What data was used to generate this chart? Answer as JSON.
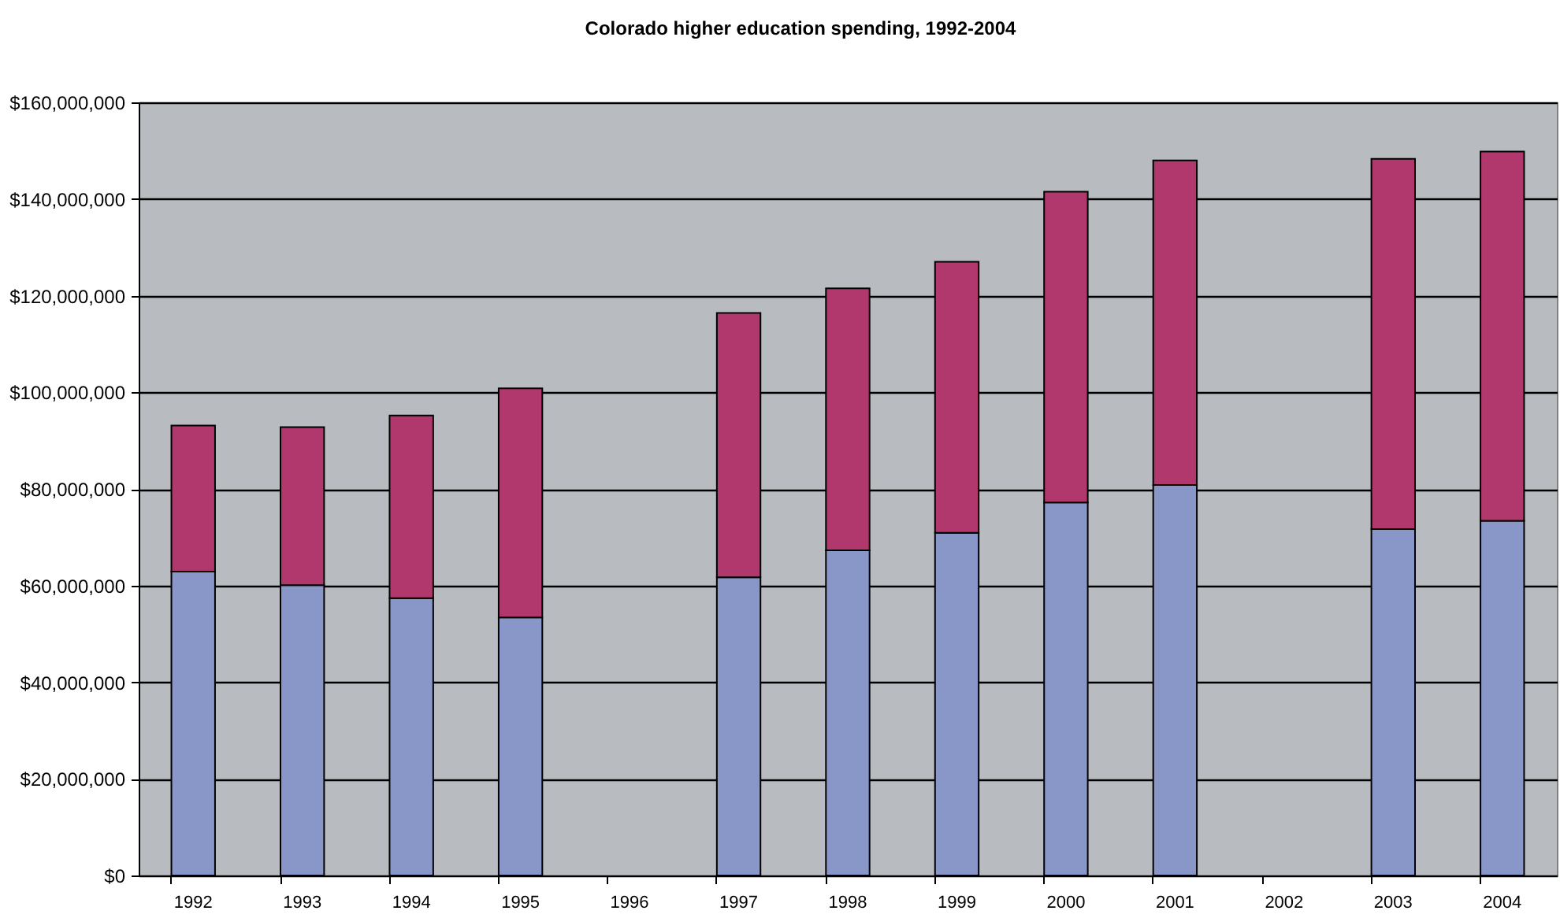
{
  "chart_data": {
    "type": "bar",
    "title": "Colorado higher education spending, 1992-2004",
    "stacked": true,
    "categories": [
      "1992",
      "1993",
      "1994",
      "1995",
      "1996",
      "1997",
      "1998",
      "1999",
      "2000",
      "2001",
      "2002",
      "2003",
      "2004"
    ],
    "series": [
      {
        "color": "#8896c8",
        "values": [
          62900000,
          60100000,
          57400000,
          53400000,
          null,
          61700000,
          67300000,
          70900000,
          77200000,
          80800000,
          null,
          71700000,
          73400000
        ]
      },
      {
        "color": "#b0386c",
        "values": [
          30200000,
          32700000,
          37800000,
          47400000,
          null,
          54700000,
          54200000,
          56100000,
          64300000,
          67200000,
          null,
          76600000,
          76400000
        ]
      }
    ],
    "ylim": [
      0,
      160000000
    ],
    "yticks": [
      {
        "value": 0,
        "label": "$0"
      },
      {
        "value": 20000000,
        "label": "$20,000,000"
      },
      {
        "value": 40000000,
        "label": "$40,000,000"
      },
      {
        "value": 60000000,
        "label": "$60,000,000"
      },
      {
        "value": 80000000,
        "label": "$80,000,000"
      },
      {
        "value": 100000000,
        "label": "$100,000,000"
      },
      {
        "value": 120000000,
        "label": "$120,000,000"
      },
      {
        "value": 140000000,
        "label": "$140,000,000"
      },
      {
        "value": 160000000,
        "label": "$160,000,000"
      }
    ],
    "grid": "y"
  }
}
